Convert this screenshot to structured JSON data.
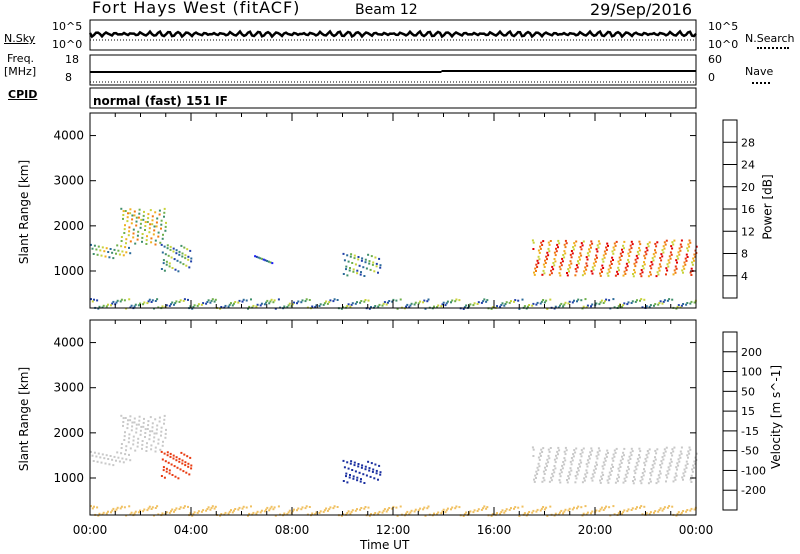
{
  "header": {
    "title": "Fort Hays West (fitACF)",
    "beam": "Beam 12",
    "date": "29/Sep/2016"
  },
  "params": {
    "nsky_label": "N.Sky",
    "nsky_ticks": [
      "10^5",
      "10^0"
    ],
    "nsearch_label": "N.Search",
    "nsearch_ticks": [
      "10^5",
      "10^0"
    ],
    "freq_label_1": "Freq.",
    "freq_label_2": "[MHz]",
    "freq_ticks": [
      "18",
      "8"
    ],
    "nave_label": "Nave",
    "nave_ticks": [
      "60",
      "0"
    ],
    "cpid_label": "CPID",
    "cpid_value": "normal (fast) 151 IF"
  },
  "chart_data": [
    {
      "type": "heatmap",
      "panel": "power",
      "ylabel": "Slant Range [km]",
      "yticks": [
        1000,
        2000,
        3000,
        4000
      ],
      "xlabel": "Time UT",
      "xticks": [
        "00:00",
        "04:00",
        "08:00",
        "12:00",
        "16:00",
        "20:00",
        "00:00"
      ],
      "xlim_hours": [
        0,
        24
      ],
      "ylim_km": [
        180,
        4500
      ],
      "colorbar": {
        "label": "Power [dB]",
        "ticks": [
          "28",
          "24",
          "20",
          "16",
          "12",
          "8",
          "4"
        ],
        "colors": [
          "#1a1aff",
          "#1f3fa8",
          "#2b6a9a",
          "#3f8f6a",
          "#6fb04a",
          "#c8d23a",
          "#f0b020",
          "#f07a10",
          "#e83a10",
          "#e00000"
        ]
      },
      "regions": [
        {
          "t": [
            0.0,
            1.6
          ],
          "r": [
            1300,
            1600
          ],
          "level": 12
        },
        {
          "t": [
            1.2,
            3.0
          ],
          "r": [
            1600,
            2400
          ],
          "level": 14
        },
        {
          "t": [
            2.8,
            4.0
          ],
          "r": [
            1000,
            1600
          ],
          "level": 10
        },
        {
          "t": [
            6.5,
            7.2
          ],
          "r": [
            1100,
            1350
          ],
          "level": 6
        },
        {
          "t": [
            10.0,
            11.5
          ],
          "r": [
            900,
            1400
          ],
          "level": 9
        },
        {
          "t": [
            17.5,
            24.0
          ],
          "r": [
            900,
            1700
          ],
          "level": 22
        },
        {
          "t": [
            0.0,
            24.0
          ],
          "r": [
            180,
            400
          ],
          "level": 8
        }
      ]
    },
    {
      "type": "heatmap",
      "panel": "velocity",
      "ylabel": "Slant Range [km]",
      "yticks": [
        1000,
        2000,
        3000,
        4000
      ],
      "xlabel": "Time UT",
      "xticks": [
        "00:00",
        "04:00",
        "08:00",
        "12:00",
        "16:00",
        "20:00",
        "00:00"
      ],
      "xlim_hours": [
        0,
        24
      ],
      "ylim_km": [
        180,
        4500
      ],
      "colorbar": {
        "label": "Velocity [m s^-1]",
        "ticks": [
          "200",
          "100",
          "50",
          "15",
          "-15",
          "-50",
          "-100",
          "-200"
        ],
        "colors": [
          "#1a2fa0",
          "#2a60b0",
          "#3f8f6a",
          "#70c040",
          "#c8c8c8",
          "#f0c060",
          "#f0a020",
          "#f07010",
          "#e83a10",
          "#e00000"
        ]
      },
      "regions": [
        {
          "t": [
            0.0,
            1.6
          ],
          "r": [
            1300,
            1600
          ],
          "velocity": 0
        },
        {
          "t": [
            1.2,
            3.0
          ],
          "r": [
            1600,
            2400
          ],
          "velocity": 0
        },
        {
          "t": [
            2.8,
            4.0
          ],
          "r": [
            1000,
            1600
          ],
          "velocity": -150
        },
        {
          "t": [
            10.0,
            11.5
          ],
          "r": [
            900,
            1400
          ],
          "velocity": 150
        },
        {
          "t": [
            17.5,
            24.0
          ],
          "r": [
            900,
            1700
          ],
          "velocity": 0
        },
        {
          "t": [
            0.0,
            24.0
          ],
          "r": [
            180,
            400
          ],
          "velocity": -30
        }
      ]
    }
  ]
}
